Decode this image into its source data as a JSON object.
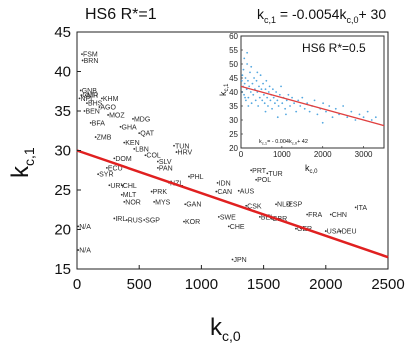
{
  "chart_data": [
    {
      "type": "scatter",
      "title": "HS6 R*=1",
      "equation_main": "-0.0054",
      "equation_intercept": "+ 30",
      "xlabel_base": "k",
      "xlabel_sub": "c,0",
      "ylabel_base": "k",
      "ylabel_sub": "c,1",
      "xlim": [
        0,
        2500
      ],
      "ylim": [
        15,
        45
      ],
      "xticks": [
        "0",
        "500",
        "1000",
        "1500",
        "2000",
        "2500"
      ],
      "yticks": [
        "15",
        "20",
        "25",
        "30",
        "35",
        "40",
        "45"
      ],
      "fit": {
        "slope": -0.0054,
        "intercept": 30,
        "color": "#e02020"
      },
      "point_color": "#333333",
      "countries": [
        {
          "name": "FSM",
          "x": 40,
          "y": 42.2
        },
        {
          "name": "BRN",
          "x": 45,
          "y": 41.4
        },
        {
          "name": "GNB",
          "x": 30,
          "y": 37.6
        },
        {
          "name": "NPL",
          "x": 20,
          "y": 36.6
        },
        {
          "name": "CMR",
          "x": 35,
          "y": 37.0
        },
        {
          "name": "NTI",
          "x": 70,
          "y": 37.0
        },
        {
          "name": "KHM",
          "x": 200,
          "y": 36.6
        },
        {
          "name": "BHS",
          "x": 80,
          "y": 36.0
        },
        {
          "name": "AGO",
          "x": 180,
          "y": 35.5
        },
        {
          "name": "BEN",
          "x": 60,
          "y": 35.0
        },
        {
          "name": "MOZ",
          "x": 250,
          "y": 34.5
        },
        {
          "name": "MDG",
          "x": 450,
          "y": 34.0
        },
        {
          "name": "BFA",
          "x": 110,
          "y": 33.5
        },
        {
          "name": "GHA",
          "x": 350,
          "y": 33.0
        },
        {
          "name": "QAT",
          "x": 500,
          "y": 32.2
        },
        {
          "name": "ZMB",
          "x": 150,
          "y": 31.7
        },
        {
          "name": "KEN",
          "x": 380,
          "y": 31.0
        },
        {
          "name": "TUN",
          "x": 780,
          "y": 30.6
        },
        {
          "name": "LBN",
          "x": 460,
          "y": 30.2
        },
        {
          "name": "HRV",
          "x": 800,
          "y": 29.8
        },
        {
          "name": "COL",
          "x": 550,
          "y": 29.4
        },
        {
          "name": "DOM",
          "x": 300,
          "y": 29.0
        },
        {
          "name": "SLV",
          "x": 650,
          "y": 28.6
        },
        {
          "name": "PAN",
          "x": 650,
          "y": 27.8
        },
        {
          "name": "ECU",
          "x": 240,
          "y": 27.8
        },
        {
          "name": "PRT",
          "x": 1400,
          "y": 27.5
        },
        {
          "name": "TUR",
          "x": 1530,
          "y": 27.1
        },
        {
          "name": "SYR",
          "x": 170,
          "y": 27.0
        },
        {
          "name": "PHL",
          "x": 900,
          "y": 26.7
        },
        {
          "name": "POL",
          "x": 1440,
          "y": 26.3
        },
        {
          "name": "NZL",
          "x": 740,
          "y": 25.9
        },
        {
          "name": "IDN",
          "x": 1130,
          "y": 25.9
        },
        {
          "name": "URY",
          "x": 260,
          "y": 25.6
        },
        {
          "name": "CHL",
          "x": 360,
          "y": 25.6
        },
        {
          "name": "PRK",
          "x": 600,
          "y": 24.8
        },
        {
          "name": "CAN",
          "x": 1120,
          "y": 24.8
        },
        {
          "name": "AUS",
          "x": 1300,
          "y": 24.9
        },
        {
          "name": "MLT",
          "x": 360,
          "y": 24.4
        },
        {
          "name": "NOR",
          "x": 380,
          "y": 23.5
        },
        {
          "name": "MYS",
          "x": 620,
          "y": 23.5
        },
        {
          "name": "GAN",
          "x": 870,
          "y": 23.2
        },
        {
          "name": "CSK",
          "x": 1360,
          "y": 23.0
        },
        {
          "name": "NLD",
          "x": 1600,
          "y": 23.2
        },
        {
          "name": "ESP",
          "x": 1690,
          "y": 23.2
        },
        {
          "name": "ITA",
          "x": 2240,
          "y": 22.8
        },
        {
          "name": "FRA",
          "x": 1850,
          "y": 21.9
        },
        {
          "name": "CHN",
          "x": 2040,
          "y": 21.9
        },
        {
          "name": "SWE",
          "x": 1140,
          "y": 21.6
        },
        {
          "name": "BEL",
          "x": 1470,
          "y": 21.6
        },
        {
          "name": "GBR",
          "x": 1560,
          "y": 21.4
        },
        {
          "name": "IRL",
          "x": 300,
          "y": 21.4
        },
        {
          "name": "RUS",
          "x": 400,
          "y": 21.2
        },
        {
          "name": "SGP",
          "x": 540,
          "y": 21.2
        },
        {
          "name": "KOR",
          "x": 860,
          "y": 21.0
        },
        {
          "name": "CHE",
          "x": 1220,
          "y": 20.4
        },
        {
          "name": "GER",
          "x": 1760,
          "y": 20.1
        },
        {
          "name": "USA",
          "x": 2000,
          "y": 19.8
        },
        {
          "name": "DEU",
          "x": 2120,
          "y": 19.8
        },
        {
          "name": "N/A",
          "x": 10,
          "y": 20.4
        },
        {
          "name": "N/A",
          "x": 10,
          "y": 17.4
        },
        {
          "name": "JPN",
          "x": 1250,
          "y": 16.2
        }
      ],
      "inset": {
        "title": "HS6 R*=0.5",
        "xlabel_base": "k",
        "xlabel_sub": "c,0",
        "ylabel_base": "k",
        "ylabel_sub": "c,1",
        "xlim": [
          0,
          3500
        ],
        "ylim": [
          20,
          60
        ],
        "xticks": [
          "0",
          "1000",
          "2000",
          "3000"
        ],
        "yticks": [
          "20",
          "25",
          "30",
          "35",
          "40",
          "45",
          "50",
          "55",
          "60"
        ],
        "equation_lhs_sub": "c,1",
        "equation_rest": "= - 0.004k",
        "equation_rest_sub": "c,0",
        "equation_tail": "+ 42",
        "fit": {
          "slope": -0.004,
          "intercept": 42,
          "color": "#e04040"
        },
        "point_color": "#55a8e0",
        "points": [
          [
            20,
            44
          ],
          [
            35,
            46
          ],
          [
            50,
            42
          ],
          [
            60,
            48
          ],
          [
            75,
            39
          ],
          [
            90,
            43
          ],
          [
            110,
            45
          ],
          [
            120,
            37
          ],
          [
            140,
            41
          ],
          [
            150,
            50
          ],
          [
            170,
            44
          ],
          [
            180,
            38
          ],
          [
            200,
            42
          ],
          [
            220,
            47
          ],
          [
            240,
            40
          ],
          [
            260,
            36
          ],
          [
            280,
            43
          ],
          [
            300,
            39
          ],
          [
            320,
            45
          ],
          [
            340,
            41
          ],
          [
            360,
            37
          ],
          [
            380,
            44
          ],
          [
            400,
            40
          ],
          [
            420,
            35
          ],
          [
            440,
            42
          ],
          [
            460,
            38
          ],
          [
            480,
            46
          ],
          [
            500,
            41
          ],
          [
            520,
            37
          ],
          [
            540,
            43
          ],
          [
            560,
            39
          ],
          [
            580,
            36
          ],
          [
            600,
            41
          ],
          [
            620,
            44
          ],
          [
            640,
            38
          ],
          [
            660,
            35
          ],
          [
            680,
            40
          ],
          [
            700,
            42
          ],
          [
            720,
            37
          ],
          [
            740,
            39
          ],
          [
            760,
            34
          ],
          [
            780,
            41
          ],
          [
            800,
            38
          ],
          [
            830,
            36
          ],
          [
            860,
            40
          ],
          [
            890,
            37
          ],
          [
            920,
            35
          ],
          [
            950,
            39
          ],
          [
            980,
            42
          ],
          [
            1010,
            36
          ],
          [
            1040,
            38
          ],
          [
            1080,
            34
          ],
          [
            1120,
            37
          ],
          [
            1160,
            39
          ],
          [
            1200,
            35
          ],
          [
            1250,
            38
          ],
          [
            1300,
            36
          ],
          [
            1350,
            33
          ],
          [
            1400,
            37
          ],
          [
            1450,
            35
          ],
          [
            1500,
            38
          ],
          [
            1560,
            34
          ],
          [
            1620,
            36
          ],
          [
            1680,
            33
          ],
          [
            1740,
            35
          ],
          [
            1800,
            37
          ],
          [
            1870,
            32
          ],
          [
            1940,
            34
          ],
          [
            2010,
            36
          ],
          [
            2080,
            33
          ],
          [
            2160,
            35
          ],
          [
            2240,
            31
          ],
          [
            2320,
            34
          ],
          [
            2400,
            32
          ],
          [
            2500,
            35
          ],
          [
            2600,
            31
          ],
          [
            2700,
            33
          ],
          [
            2800,
            30
          ],
          [
            2900,
            32
          ],
          [
            3000,
            31
          ],
          [
            3100,
            33
          ],
          [
            3200,
            30
          ],
          [
            3300,
            31
          ],
          [
            150,
            54
          ],
          [
            80,
            52
          ],
          [
            250,
            49
          ],
          [
            400,
            47
          ],
          [
            30,
            40
          ],
          [
            100,
            38
          ],
          [
            180,
            35
          ],
          [
            600,
            33
          ],
          [
            900,
            31
          ],
          [
            1100,
            32
          ],
          [
            2000,
            29
          ]
        ]
      }
    }
  ]
}
